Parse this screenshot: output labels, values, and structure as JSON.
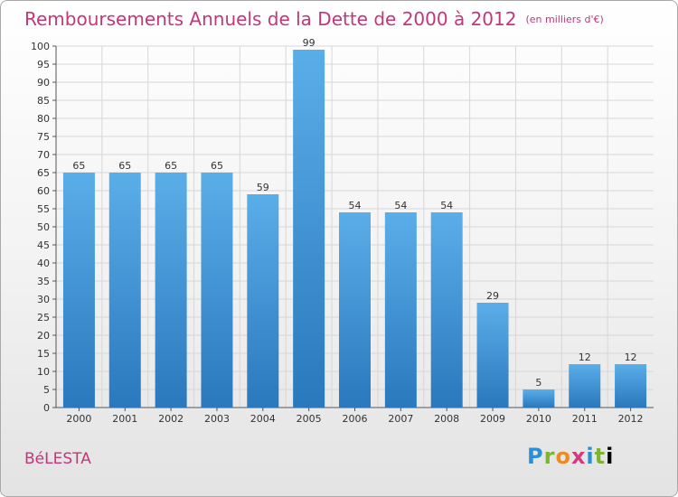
{
  "header": {
    "title": "Remboursements Annuels de la Dette de 2000 à 2012",
    "unit": "(en milliers d'€)"
  },
  "footer": {
    "commune": "BéLESTA",
    "logo_letters": [
      "P",
      "r",
      "o",
      "x",
      "i",
      "t",
      "i"
    ]
  },
  "colors": {
    "title": "#c2377a",
    "bar_top": "#5aaee8",
    "bar_bottom": "#2a78bd",
    "grid": "#d7d7d7"
  },
  "chart_data": {
    "type": "bar",
    "title": "Remboursements Annuels de la Dette de 2000 à 2012",
    "xlabel": "",
    "ylabel": "",
    "categories": [
      "2000",
      "2001",
      "2002",
      "2003",
      "2004",
      "2005",
      "2006",
      "2007",
      "2008",
      "2009",
      "2010",
      "2011",
      "2012"
    ],
    "values": [
      65,
      65,
      65,
      65,
      59,
      99,
      54,
      54,
      54,
      29,
      5,
      12,
      12
    ],
    "ylim": [
      0,
      100
    ],
    "ytick_step": 5,
    "grid": true,
    "data_labels": true
  }
}
